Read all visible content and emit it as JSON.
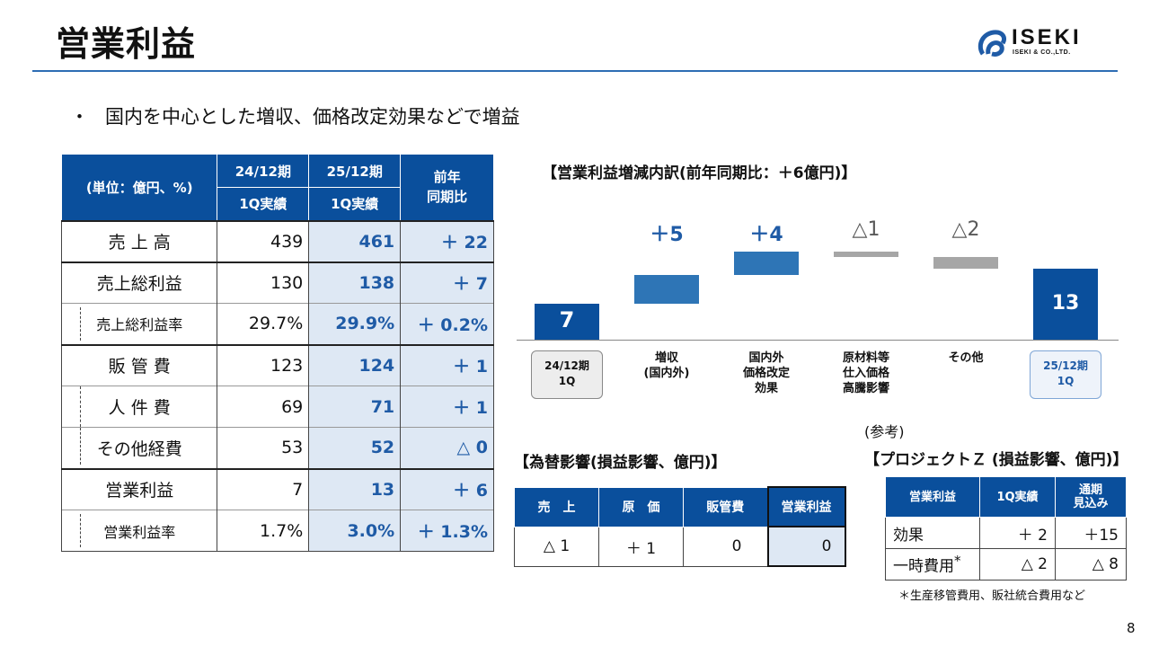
{
  "title": "営業利益",
  "logo": {
    "main": "ISEKI",
    "sub": "ISEKI & CO.,LTD."
  },
  "bullet": {
    "mark": "・",
    "text": "国内を中心とした増収、価格改定効果などで増益"
  },
  "main_table": {
    "header": {
      "unit": "(単位：億円、%)",
      "prev_period": "24/12期",
      "prev_sub": "1Q実績",
      "cur_period": "25/12期",
      "cur_sub": "1Q実績",
      "diff_line1": "前年",
      "diff_line2": "同期比"
    },
    "rows": [
      {
        "label": "売 上 高",
        "prev": "439",
        "cur": "461",
        "diff": "＋ 22"
      },
      {
        "label": "売上総利益",
        "prev": "130",
        "cur": "138",
        "diff": "＋ 7"
      },
      {
        "label": "売上総利益率",
        "prev": "29.7%",
        "cur": "29.9%",
        "diff": "＋ 0.2%"
      },
      {
        "label": "販 管 費",
        "prev": "123",
        "cur": "124",
        "diff": "＋ 1"
      },
      {
        "label": "人 件 費",
        "prev": "69",
        "cur": "71",
        "diff": "＋ 1"
      },
      {
        "label": "その他経費",
        "prev": "53",
        "cur": "52",
        "diff": "△ 0"
      },
      {
        "label": "営業利益",
        "prev": "7",
        "cur": "13",
        "diff": "＋ 6"
      },
      {
        "label": "営業利益率",
        "prev": "1.7%",
        "cur": "3.0%",
        "diff": "＋ 1.3%"
      }
    ]
  },
  "waterfall": {
    "title": "【営業利益増減内訳(前年同期比：＋6億円)】",
    "start_value": "7",
    "end_value": "13",
    "deltas": [
      {
        "label": "＋5",
        "value": 5,
        "color": "#2E75B6"
      },
      {
        "label": "＋4",
        "value": 4,
        "color": "#2E75B6"
      },
      {
        "label": "△1",
        "value": -1,
        "color": "#A6A6A6"
      },
      {
        "label": "△2",
        "value": -2,
        "color": "#A6A6A6"
      }
    ],
    "categories": [
      {
        "lines": [
          "24/12期",
          "1Q"
        ]
      },
      {
        "lines": [
          "増収",
          "(国内外)"
        ]
      },
      {
        "lines": [
          "国内外",
          "価格改定",
          "効果"
        ]
      },
      {
        "lines": [
          "原材料等",
          "仕入価格",
          "高騰影響"
        ]
      },
      {
        "lines": [
          "その他"
        ]
      },
      {
        "lines": [
          "25/12期",
          "1Q"
        ]
      }
    ],
    "colors": {
      "total": "#0A4F9C",
      "up": "#2E75B6",
      "down": "#A6A6A6",
      "label_up": "#1F5BA6",
      "label_down": "#595959"
    }
  },
  "fx": {
    "title": "【為替影響(損益影響、億円)】",
    "headers": [
      "売　上",
      "原　価",
      "販管費",
      "営業利益"
    ],
    "values": [
      "△ 1",
      "＋ 1",
      "0",
      "0"
    ]
  },
  "project_z": {
    "ref": "(参考)",
    "title": "【プロジェクトＺ (損益影響、億円)】",
    "headers": [
      "営業利益",
      "1Q実績",
      "通期\n見込み"
    ],
    "header_3a": "通期",
    "header_3b": "見込み",
    "rows": [
      {
        "label": "効果",
        "q1": "＋ 2",
        "full": "＋15"
      },
      {
        "label": "一時費用",
        "mark": "*",
        "q1": "△ 2",
        "full": "△ 8"
      }
    ],
    "footnote": "＊生産移管費用、販社統合費用など"
  },
  "page_number": "8"
}
